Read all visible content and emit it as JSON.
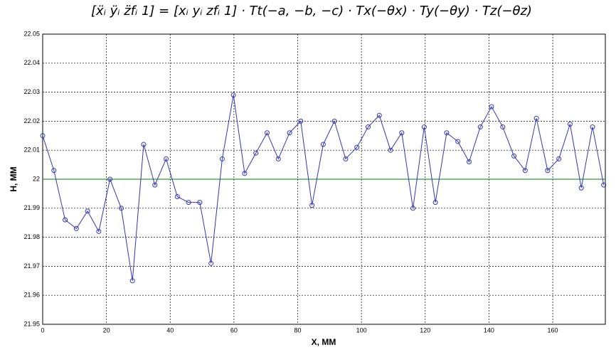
{
  "chart_data": {
    "type": "line",
    "title": "[ẍᵢ ÿᵢ z̈fᵢ 1] = [xᵢ yᵢ zfᵢ 1] · Tt(−a, −b, −c) · Tx(−θx) · Ty(−θy) · Tz(−θz)",
    "x_label": "X, MM",
    "y_label": "H, MM",
    "x": [
      0,
      3.52,
      7.04,
      10.56,
      14.08,
      17.6,
      21.12,
      24.64,
      28.16,
      31.68,
      35.2,
      38.72,
      42.24,
      45.76,
      49.28,
      52.8,
      56.32,
      59.84,
      63.36,
      66.88,
      70.4,
      73.92,
      77.44,
      80.96,
      84.48,
      88,
      91.52,
      95.04,
      98.56,
      102.08,
      105.6,
      109.12,
      112.64,
      116.16,
      119.68,
      123.2,
      126.72,
      130.24,
      133.76,
      137.28,
      140.8,
      144.32,
      147.84,
      151.36,
      154.88,
      158.4,
      161.92,
      165.44,
      168.96,
      172.48,
      176
    ],
    "series": [
      {
        "color": "#3535b5",
        "values": [
          22.015,
          22.003,
          21.986,
          21.983,
          21.989,
          21.982,
          22.0,
          21.99,
          21.965,
          22.012,
          21.998,
          22.007,
          21.994,
          21.992,
          21.992,
          21.971,
          22.007,
          22.029,
          22.002,
          22.009,
          22.016,
          22.007,
          22.016,
          22.02,
          21.991,
          22.012,
          22.02,
          22.007,
          22.011,
          22.018,
          22.022,
          22.01,
          22.016,
          21.99,
          22.018,
          21.992,
          22.016,
          22.013,
          22.006,
          22.018,
          22.025,
          22.018,
          22.008,
          22.003,
          22.021,
          22.003,
          22.007,
          22.019,
          21.997,
          22.018,
          21.998
        ]
      }
    ],
    "reference_line": {
      "value": 22,
      "color": "#008000"
    },
    "xlim": [
      0,
      176.5
    ],
    "xticks": [
      0,
      20,
      40,
      60,
      80,
      100,
      120,
      140,
      160
    ],
    "ylim": [
      21.95,
      22.05
    ],
    "yticks": [
      21.95,
      21.96,
      21.97,
      21.98,
      21.99,
      22,
      22.01,
      22.02,
      22.03,
      22.04,
      22.05
    ],
    "grid": true
  }
}
